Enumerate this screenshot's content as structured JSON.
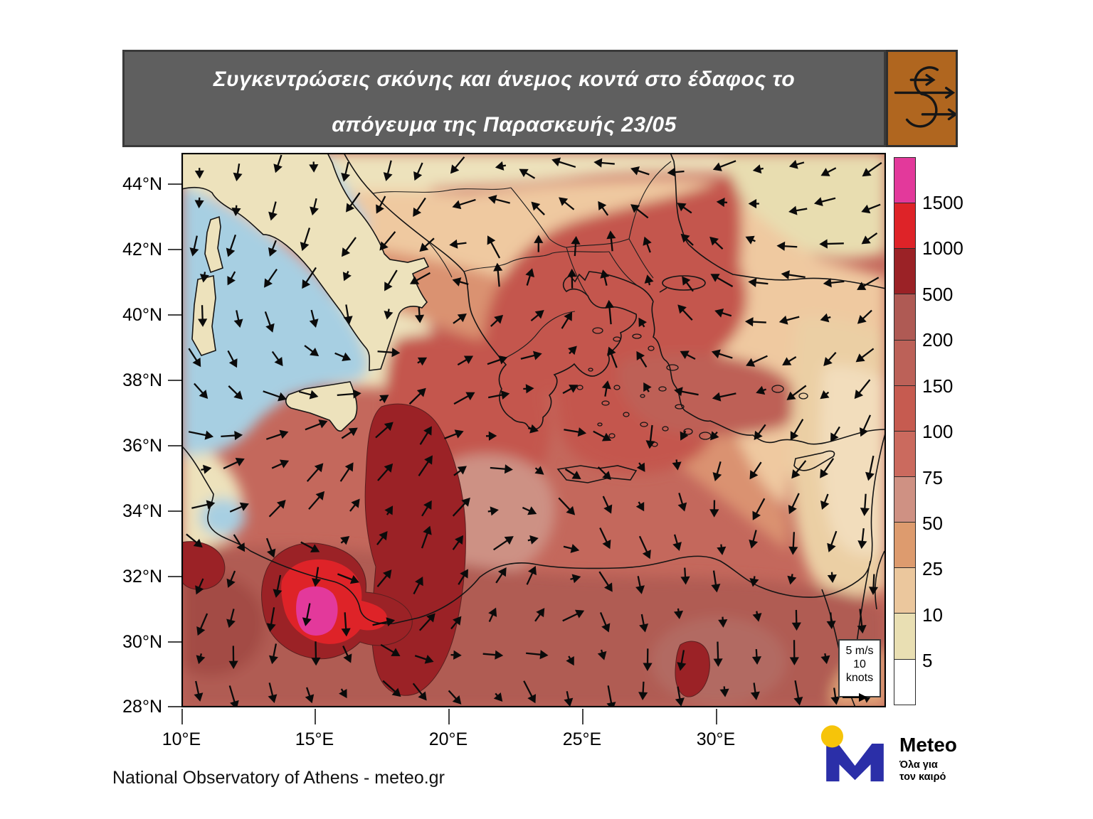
{
  "title": {
    "line1": "Συγκεντρώσεις σκόνης και άνεμος κοντά στο έδαφος το",
    "line2": "απόγευμα της Παρασκευής 23/05"
  },
  "header": {
    "bg_color": "#5F5F5F",
    "icon_box_color": "#B0661F",
    "icon": "dust-cycle-icon"
  },
  "colorbar": {
    "boundary_labels": [
      "1500",
      "1000",
      "500",
      "200",
      "150",
      "100",
      "75",
      "50",
      "25",
      "10",
      "5"
    ],
    "segments": [
      {
        "range": "> 1500",
        "color": "#E3399B"
      },
      {
        "range": "1000 - 1500",
        "color": "#DE2328"
      },
      {
        "range": "500 - 1000",
        "color": "#9B2226"
      },
      {
        "range": "200 - 500",
        "color": "#AF5A54"
      },
      {
        "range": "150 - 200",
        "color": "#BC6158"
      },
      {
        "range": "100 - 150",
        "color": "#C65B50"
      },
      {
        "range": "75 - 100",
        "color": "#CB6A5E"
      },
      {
        "range": "50 - 75",
        "color": "#CF9183"
      },
      {
        "range": "25 - 50",
        "color": "#DD9B6E"
      },
      {
        "range": "10 - 25",
        "color": "#EBC79D"
      },
      {
        "range": "5 - 10",
        "color": "#E9DFB3"
      },
      {
        "range": "< 5",
        "color": "#FFFFFF"
      }
    ]
  },
  "axes": {
    "lat_labels": [
      "44°N",
      "42°N",
      "40°N",
      "38°N",
      "36°N",
      "34°N",
      "32°N",
      "30°N",
      "28°N"
    ],
    "lon_labels": [
      "10°E",
      "15°E",
      "20°E",
      "25°E",
      "30°E"
    ]
  },
  "wind_legend": {
    "speed_ms": "5 m/s",
    "speed_knots": "10 knots"
  },
  "attribution": "National Observatory of Athens - meteo.gr",
  "logo": {
    "brand": "Meteo",
    "tagline1": "Όλα για",
    "tagline2": "τον καιρό",
    "m_color": "#2B2FA8",
    "dot_color": "#F6C40A",
    "text_color": "#3A43C8"
  },
  "map": {
    "sea_color": "#A7CFE2",
    "land_low_dust_color": "#EDE2BC",
    "base_dust_color": "#C4685C",
    "wind": {
      "cols": 19,
      "rows": 15,
      "grid": [
        [
          180,
          185,
          195,
          280,
          270,
          245,
          230
        ],
        [
          205,
          215,
          230,
          10,
          350,
          285,
          245
        ],
        [
          145,
          125,
          60,
          80,
          320,
          240,
          220
        ],
        [
          70,
          40,
          20,
          130,
          150,
          210,
          195
        ],
        [
          215,
          200,
          30,
          15,
          180,
          175,
          180
        ],
        [
          160,
          170,
          145,
          150,
          180,
          180,
          175
        ]
      ]
    }
  }
}
